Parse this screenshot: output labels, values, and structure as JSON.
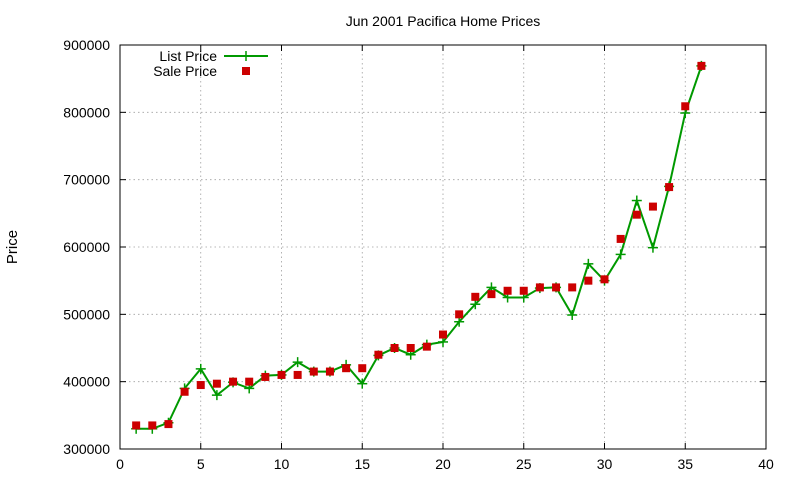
{
  "chart_data": {
    "type": "line",
    "title": "Jun 2001 Pacifica Home Prices",
    "xlabel": "",
    "ylabel": "Price",
    "xlim": [
      0,
      40
    ],
    "ylim": [
      300000,
      900000
    ],
    "xticks": [
      0,
      5,
      10,
      15,
      20,
      25,
      30,
      35,
      40
    ],
    "yticks": [
      300000,
      400000,
      500000,
      600000,
      700000,
      800000,
      900000
    ],
    "grid": true,
    "legend_position": "top-left",
    "series": [
      {
        "name": "List Price",
        "kind": "line-with-plus-markers",
        "color": "#009900",
        "x": [
          1,
          2,
          3,
          4,
          5,
          6,
          7,
          8,
          9,
          10,
          11,
          12,
          13,
          14,
          15,
          16,
          17,
          18,
          19,
          20,
          21,
          22,
          23,
          24,
          25,
          26,
          27,
          28,
          29,
          30,
          31,
          32,
          33,
          34,
          35,
          36
        ],
        "y": [
          330000,
          330000,
          339000,
          390000,
          419000,
          380000,
          399000,
          390000,
          409000,
          410000,
          429000,
          415000,
          415000,
          425000,
          397000,
          439000,
          450000,
          440000,
          455000,
          459000,
          489000,
          515000,
          540000,
          525000,
          525000,
          539000,
          540000,
          499000,
          575000,
          550000,
          589000,
          669000,
          599000,
          690000,
          799000,
          869000
        ]
      },
      {
        "name": "Sale Price",
        "kind": "square-markers",
        "color": "#cc0000",
        "x": [
          1,
          2,
          3,
          4,
          5,
          6,
          7,
          8,
          9,
          10,
          11,
          12,
          13,
          14,
          15,
          16,
          17,
          18,
          19,
          20,
          21,
          22,
          23,
          24,
          25,
          26,
          27,
          28,
          29,
          30,
          31,
          32,
          33,
          34,
          35,
          36
        ],
        "y": [
          335000,
          335000,
          337000,
          385000,
          395000,
          397000,
          400000,
          400000,
          407000,
          410000,
          410000,
          415000,
          415000,
          420000,
          420000,
          440000,
          450000,
          450000,
          452000,
          470000,
          500000,
          526000,
          530000,
          535000,
          535000,
          540000,
          540000,
          540000,
          550000,
          552000,
          612000,
          648000,
          660000,
          689000,
          809000,
          869000
        ]
      }
    ]
  }
}
